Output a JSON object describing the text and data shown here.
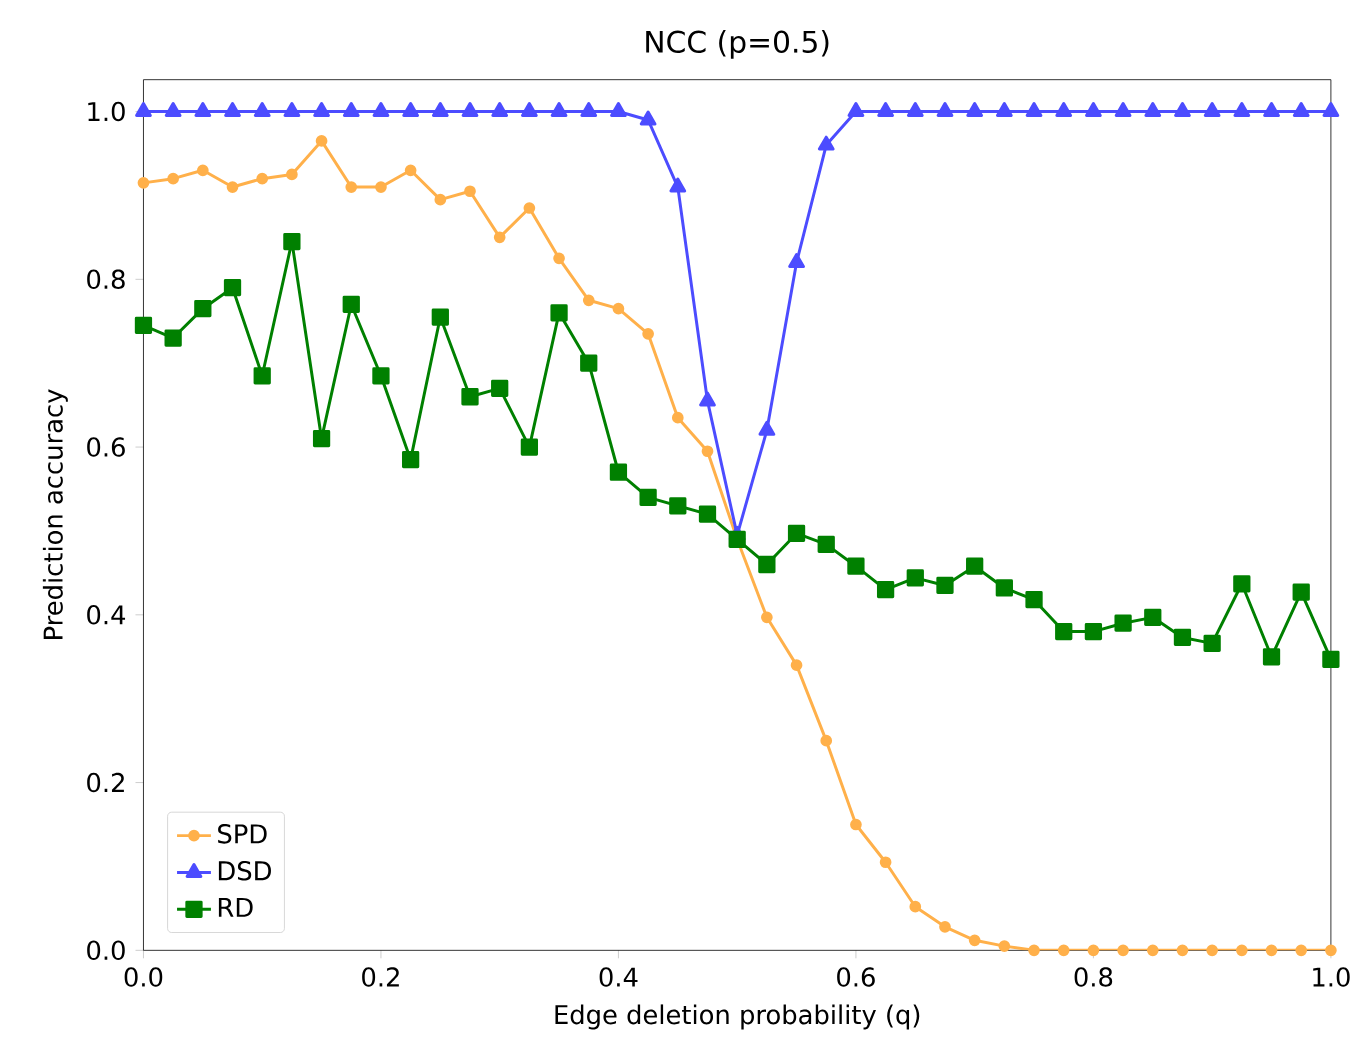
{
  "chart_data": {
    "type": "line",
    "title": "NCC (p=0.5)",
    "xlabel": "Edge deletion probability (q)",
    "ylabel": "Prediction accuracy",
    "x": [
      0,
      0.025,
      0.05,
      0.075,
      0.1,
      0.125,
      0.15,
      0.175,
      0.2,
      0.225,
      0.25,
      0.275,
      0.3,
      0.325,
      0.35,
      0.375,
      0.4,
      0.425,
      0.45,
      0.475,
      0.5,
      0.525,
      0.55,
      0.575,
      0.6,
      0.625,
      0.65,
      0.675,
      0.7,
      0.725,
      0.75,
      0.775,
      0.8,
      0.825,
      0.85,
      0.875,
      0.9,
      0.925,
      0.95,
      0.975,
      1.0
    ],
    "series": [
      {
        "name": "SPD",
        "color": "#ffb04a",
        "marker": "circle",
        "values": [
          0.915,
          0.92,
          0.93,
          0.91,
          0.92,
          0.925,
          0.965,
          0.91,
          0.91,
          0.93,
          0.895,
          0.905,
          0.85,
          0.885,
          0.825,
          0.775,
          0.765,
          0.735,
          0.635,
          0.595,
          0.49,
          0.397,
          0.34,
          0.25,
          0.15,
          0.105,
          0.052,
          0.028,
          0.012,
          0.005,
          0,
          0,
          0,
          0,
          0,
          0,
          0,
          0,
          0,
          0,
          0
        ]
      },
      {
        "name": "DSD",
        "color": "#4c4cff",
        "marker": "triangle",
        "values": [
          1,
          1,
          1,
          1,
          1,
          1,
          1,
          1,
          1,
          1,
          1,
          1,
          1,
          1,
          1,
          1,
          1,
          0.99,
          0.91,
          0.655,
          0.495,
          0.62,
          0.82,
          0.96,
          1,
          1,
          1,
          1,
          1,
          1,
          1,
          1,
          1,
          1,
          1,
          1,
          1,
          1,
          1,
          1,
          1
        ]
      },
      {
        "name": "RD",
        "color": "#008000",
        "marker": "square",
        "values": [
          0.745,
          0.73,
          0.765,
          0.79,
          0.685,
          0.845,
          0.61,
          0.77,
          0.685,
          0.585,
          0.755,
          0.66,
          0.67,
          0.6,
          0.76,
          0.7,
          0.57,
          0.54,
          0.53,
          0.52,
          0.49,
          0.46,
          0.497,
          0.484,
          0.458,
          0.43,
          0.444,
          0.435,
          0.458,
          0.432,
          0.418,
          0.38,
          0.38,
          0.39,
          0.397,
          0.373,
          0.366,
          0.437,
          0.35,
          0.427,
          0.347
        ]
      }
    ],
    "xlim": [
      0,
      1
    ],
    "ylim": [
      0,
      1.038
    ],
    "xticks": [
      {
        "value": 0,
        "label": "0.0"
      },
      0.2,
      0.4,
      0.6,
      0.8,
      {
        "value": 1,
        "label": "1.0"
      }
    ],
    "yticks": [
      {
        "value": 0,
        "label": "0.0"
      },
      0.2,
      0.4,
      0.6,
      0.8,
      {
        "value": 1,
        "label": "1.0"
      }
    ],
    "grid": false,
    "legend": "bottom left"
  }
}
